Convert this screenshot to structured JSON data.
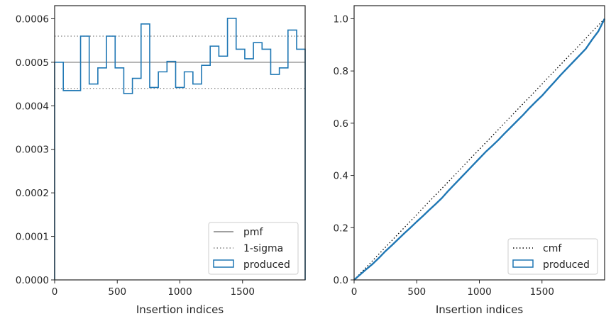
{
  "chart_data": [
    {
      "type": "line",
      "subtype": "step-histogram",
      "xlabel": "Insertion indices",
      "ylabel": "",
      "xlim": [
        0,
        2000
      ],
      "ylim": [
        0,
        0.00063
      ],
      "xticks": [
        0,
        500,
        1000,
        1500
      ],
      "xtick_labels": [
        "0",
        "500",
        "1000",
        "1500"
      ],
      "yticks": [
        0,
        0.0001,
        0.0002,
        0.0003,
        0.0004,
        0.0005,
        0.0006
      ],
      "ytick_labels": [
        "0.0000",
        "0.0001",
        "0.0002",
        "0.0003",
        "0.0004",
        "0.0005",
        "0.0006"
      ],
      "grid": false,
      "legend_position": "lower-right",
      "reference_lines": [
        {
          "name": "pmf",
          "style": "solid",
          "color": "#808080",
          "y": 0.0005
        },
        {
          "name": "1-sigma",
          "style": "dotted",
          "color": "#808080",
          "y": [
            0.00044,
            0.00056
          ]
        }
      ],
      "series": [
        {
          "name": "produced",
          "color": "#1f77b4",
          "bin_edges": [
            0,
            69,
            138,
            207,
            276,
            345,
            414,
            483,
            552,
            621,
            690,
            759,
            828,
            897,
            966,
            1035,
            1104,
            1173,
            1242,
            1311,
            1380,
            1449,
            1518,
            1587,
            1656,
            1725,
            1794,
            1863,
            1932,
            2000
          ],
          "values": [
            0.0005,
            0.000435,
            0.000435,
            0.00056,
            0.00045,
            0.000487,
            0.00056,
            0.000487,
            0.000428,
            0.000463,
            0.000588,
            0.000442,
            0.000478,
            0.000502,
            0.000442,
            0.000478,
            0.00045,
            0.000493,
            0.000537,
            0.000514,
            0.000601,
            0.00053,
            0.000508,
            0.000545,
            0.00053,
            0.000472,
            0.000487,
            0.000574,
            0.00053
          ]
        }
      ]
    },
    {
      "type": "line",
      "subtype": "cumulative",
      "xlabel": "Insertion indices",
      "ylabel": "",
      "xlim": [
        0,
        2000
      ],
      "ylim": [
        0,
        1.05
      ],
      "xticks": [
        0,
        500,
        1000,
        1500
      ],
      "xtick_labels": [
        "0",
        "500",
        "1000",
        "1500"
      ],
      "yticks": [
        0,
        0.2,
        0.4,
        0.6,
        0.8,
        1.0
      ],
      "ytick_labels": [
        "0.0",
        "0.2",
        "0.4",
        "0.6",
        "0.8",
        "1.0"
      ],
      "grid": false,
      "legend_position": "lower-right",
      "series": [
        {
          "name": "cmf",
          "style": "dotted",
          "color": "#000000",
          "x": [
            0,
            2000
          ],
          "y": [
            0,
            1.0
          ]
        },
        {
          "name": "produced",
          "color": "#1f77b4",
          "x": [
            0,
            50,
            100,
            150,
            200,
            250,
            300,
            350,
            400,
            450,
            500,
            550,
            600,
            650,
            700,
            750,
            800,
            850,
            900,
            950,
            1000,
            1050,
            1100,
            1150,
            1200,
            1250,
            1300,
            1350,
            1400,
            1450,
            1500,
            1550,
            1600,
            1650,
            1700,
            1750,
            1800,
            1850,
            1900,
            1950,
            2000
          ],
          "y": [
            0,
            0.021,
            0.042,
            0.062,
            0.085,
            0.11,
            0.132,
            0.155,
            0.178,
            0.2,
            0.223,
            0.245,
            0.268,
            0.29,
            0.313,
            0.34,
            0.365,
            0.39,
            0.415,
            0.44,
            0.465,
            0.49,
            0.512,
            0.535,
            0.56,
            0.584,
            0.608,
            0.632,
            0.658,
            0.682,
            0.705,
            0.732,
            0.758,
            0.785,
            0.81,
            0.835,
            0.86,
            0.885,
            0.92,
            0.952,
            1.0
          ]
        }
      ]
    }
  ]
}
